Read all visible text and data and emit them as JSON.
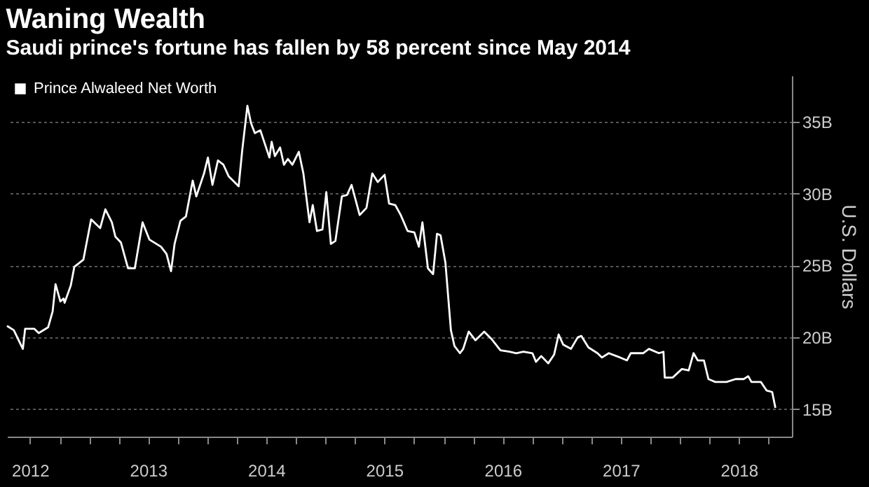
{
  "chart_data": {
    "type": "line",
    "title": "Waning Wealth",
    "subtitle": "Saudi prince's fortune has fallen by 58 percent since May 2014",
    "ylabel": "U.S. Dollars",
    "x": [
      "2012-04-21",
      "2012-05-12",
      "2012-06-09",
      "2012-06-16",
      "2012-07-14",
      "2012-07-28",
      "2012-08-26",
      "2012-09-09",
      "2012-09-18",
      "2012-10-03",
      "2012-10-13",
      "2012-10-16",
      "2012-11-04",
      "2012-11-15",
      "2012-12-13",
      "2013-01-06",
      "2013-02-03",
      "2013-02-19",
      "2013-03-11",
      "2013-03-22",
      "2013-04-08",
      "2013-04-30",
      "2013-05-21",
      "2013-06-14",
      "2013-07-05",
      "2013-08-10",
      "2013-08-27",
      "2013-09-10",
      "2013-09-21",
      "2013-10-09",
      "2013-10-26",
      "2013-11-16",
      "2013-11-27",
      "2013-12-21",
      "2014-01-02",
      "2014-01-16",
      "2014-02-02",
      "2014-02-19",
      "2014-03-07",
      "2014-04-07",
      "2014-04-18",
      "2014-05-04",
      "2014-05-15",
      "2014-05-27",
      "2014-06-13",
      "2014-07-11",
      "2014-07-18",
      "2014-07-28",
      "2014-08-13",
      "2014-08-25",
      "2014-09-06",
      "2014-09-20",
      "2014-10-10",
      "2014-10-24",
      "2014-11-12",
      "2014-11-22",
      "2014-12-05",
      "2014-12-22",
      "2015-01-03",
      "2015-01-17",
      "2015-01-31",
      "2015-02-20",
      "2015-03-08",
      "2015-03-22",
      "2015-04-16",
      "2015-05-07",
      "2015-05-25",
      "2015-06-11",
      "2015-07-02",
      "2015-07-16",
      "2015-08-04",
      "2015-08-21",
      "2015-09-11",
      "2015-10-02",
      "2015-10-16",
      "2015-10-27",
      "2015-11-13",
      "2015-11-29",
      "2015-12-11",
      "2015-12-22",
      "2016-01-06",
      "2016-01-23",
      "2016-02-03",
      "2016-02-20",
      "2016-03-01",
      "2016-03-18",
      "2016-04-08",
      "2016-05-05",
      "2016-05-27",
      "2016-06-24",
      "2016-07-22",
      "2016-08-12",
      "2016-09-03",
      "2016-10-01",
      "2016-10-12",
      "2016-10-28",
      "2016-11-19",
      "2016-12-07",
      "2016-12-21",
      "2017-01-04",
      "2017-01-28",
      "2017-02-18",
      "2017-03-01",
      "2017-03-23",
      "2017-04-20",
      "2017-05-04",
      "2017-05-25",
      "2017-06-29",
      "2017-07-20",
      "2017-08-01",
      "2017-09-08",
      "2017-09-26",
      "2017-10-27",
      "2017-11-10",
      "2017-11-14",
      "2017-12-08",
      "2018-01-06",
      "2018-01-27",
      "2018-02-11",
      "2018-02-24",
      "2018-03-15",
      "2018-03-29",
      "2018-04-19",
      "2018-05-24",
      "2018-06-21",
      "2018-07-16",
      "2018-07-30",
      "2018-08-09",
      "2018-09-07",
      "2018-09-25",
      "2018-10-12",
      "2018-10-22"
    ],
    "series": [
      {
        "name": "Prince Alwaleed Net Worth",
        "color": "#ffffff",
        "values": [
          20.8,
          20.5,
          19.2,
          20.6,
          20.6,
          20.3,
          20.7,
          21.8,
          23.7,
          22.5,
          22.7,
          22.4,
          23.6,
          24.9,
          25.4,
          28.2,
          27.6,
          28.9,
          28.0,
          27.0,
          26.6,
          24.8,
          24.8,
          28.0,
          26.8,
          26.3,
          25.8,
          24.6,
          26.5,
          28.1,
          28.4,
          30.9,
          29.8,
          31.4,
          32.5,
          30.6,
          32.3,
          32.0,
          31.2,
          30.5,
          33.0,
          36.1,
          34.9,
          34.2,
          34.4,
          32.5,
          33.6,
          32.6,
          33.2,
          32.0,
          32.4,
          32.0,
          32.9,
          31.4,
          28.0,
          29.2,
          27.4,
          27.5,
          30.1,
          26.5,
          26.7,
          29.8,
          29.9,
          30.6,
          28.5,
          29.0,
          31.4,
          30.8,
          31.3,
          29.3,
          29.2,
          28.5,
          27.4,
          27.3,
          26.3,
          28.0,
          24.8,
          24.4,
          27.2,
          27.1,
          25.2,
          20.5,
          19.4,
          18.9,
          19.2,
          20.4,
          19.8,
          20.4,
          19.9,
          19.1,
          19.0,
          18.9,
          19.0,
          18.9,
          18.3,
          18.7,
          18.2,
          18.8,
          20.2,
          19.5,
          19.2,
          20.0,
          20.1,
          19.3,
          18.9,
          18.6,
          18.9,
          18.6,
          18.4,
          18.9,
          18.9,
          19.2,
          18.9,
          19.0,
          17.2,
          17.2,
          17.8,
          17.7,
          18.9,
          18.4,
          18.4,
          17.1,
          16.9,
          16.9,
          17.1,
          17.1,
          17.3,
          16.9,
          16.9,
          16.3,
          16.2,
          15.1
        ]
      }
    ],
    "xlim": [
      "2012-04-21",
      "2018-12-12"
    ],
    "xticks": [
      {
        "value": "2012-07-01",
        "label": "2012"
      },
      {
        "value": "2012-10-01",
        "label": null
      },
      {
        "value": "2013-01-01",
        "label": null
      },
      {
        "value": "2013-04-01",
        "label": null
      },
      {
        "value": "2013-07-01",
        "label": "2013"
      },
      {
        "value": "2013-10-01",
        "label": null
      },
      {
        "value": "2014-01-01",
        "label": null
      },
      {
        "value": "2014-04-01",
        "label": null
      },
      {
        "value": "2014-07-01",
        "label": "2014"
      },
      {
        "value": "2014-10-01",
        "label": null
      },
      {
        "value": "2015-01-01",
        "label": null
      },
      {
        "value": "2015-04-01",
        "label": null
      },
      {
        "value": "2015-07-01",
        "label": "2015"
      },
      {
        "value": "2015-10-01",
        "label": null
      },
      {
        "value": "2016-01-01",
        "label": null
      },
      {
        "value": "2016-04-01",
        "label": null
      },
      {
        "value": "2016-07-01",
        "label": "2016"
      },
      {
        "value": "2016-10-01",
        "label": null
      },
      {
        "value": "2017-01-01",
        "label": null
      },
      {
        "value": "2017-04-01",
        "label": null
      },
      {
        "value": "2017-07-01",
        "label": "2017"
      },
      {
        "value": "2017-10-01",
        "label": null
      },
      {
        "value": "2018-01-01",
        "label": null
      },
      {
        "value": "2018-04-01",
        "label": null
      },
      {
        "value": "2018-07-01",
        "label": "2018"
      },
      {
        "value": "2018-10-01",
        "label": null
      }
    ],
    "ylim": [
      13.1,
      38.2
    ],
    "yticks": [
      {
        "value": 15,
        "label": "15B"
      },
      {
        "value": 20,
        "label": "20B"
      },
      {
        "value": 25,
        "label": "25B"
      },
      {
        "value": 30,
        "label": "30B"
      },
      {
        "value": 35,
        "label": "35B"
      }
    ],
    "grid": "y",
    "legend": "top left",
    "line_style": "solid"
  }
}
